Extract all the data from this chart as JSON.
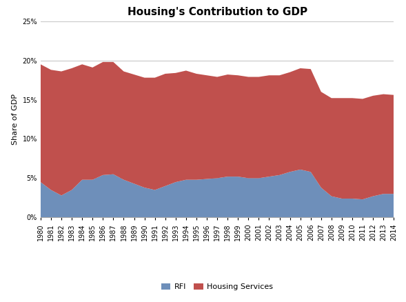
{
  "title": "Housing's Contribution to GDP",
  "ylabel": "Share of GDP",
  "years": [
    1980,
    1981,
    1982,
    1983,
    1984,
    1985,
    1986,
    1987,
    1988,
    1989,
    1990,
    1991,
    1992,
    1993,
    1994,
    1995,
    1996,
    1997,
    1998,
    1999,
    2000,
    2001,
    2002,
    2003,
    2004,
    2005,
    2006,
    2007,
    2008,
    2009,
    2010,
    2011,
    2012,
    2013,
    2014
  ],
  "rfi": [
    4.5,
    3.5,
    2.8,
    3.5,
    4.8,
    4.8,
    5.4,
    5.5,
    4.8,
    4.3,
    3.8,
    3.5,
    4.0,
    4.5,
    4.8,
    4.8,
    4.9,
    5.0,
    5.2,
    5.2,
    5.0,
    5.0,
    5.2,
    5.4,
    5.8,
    6.1,
    5.8,
    3.8,
    2.7,
    2.4,
    2.4,
    2.3,
    2.7,
    3.0,
    3.0
  ],
  "housing_services": [
    15.0,
    15.3,
    15.8,
    15.5,
    14.7,
    14.3,
    14.4,
    14.3,
    13.8,
    13.9,
    14.0,
    14.3,
    14.3,
    13.9,
    13.9,
    13.5,
    13.2,
    12.9,
    13.0,
    12.9,
    12.9,
    12.9,
    12.9,
    12.7,
    12.7,
    12.9,
    13.1,
    12.2,
    12.5,
    12.8,
    12.8,
    12.8,
    12.8,
    12.7,
    12.6
  ],
  "rfi_color": "#6e8fba",
  "housing_services_color": "#c0504d",
  "ylim": [
    0,
    25
  ],
  "yticks": [
    0,
    5,
    10,
    15,
    20,
    25
  ],
  "background_color": "#ffffff",
  "grid_color": "#c8c8c8",
  "title_fontsize": 11,
  "ylabel_fontsize": 8,
  "tick_fontsize": 7
}
